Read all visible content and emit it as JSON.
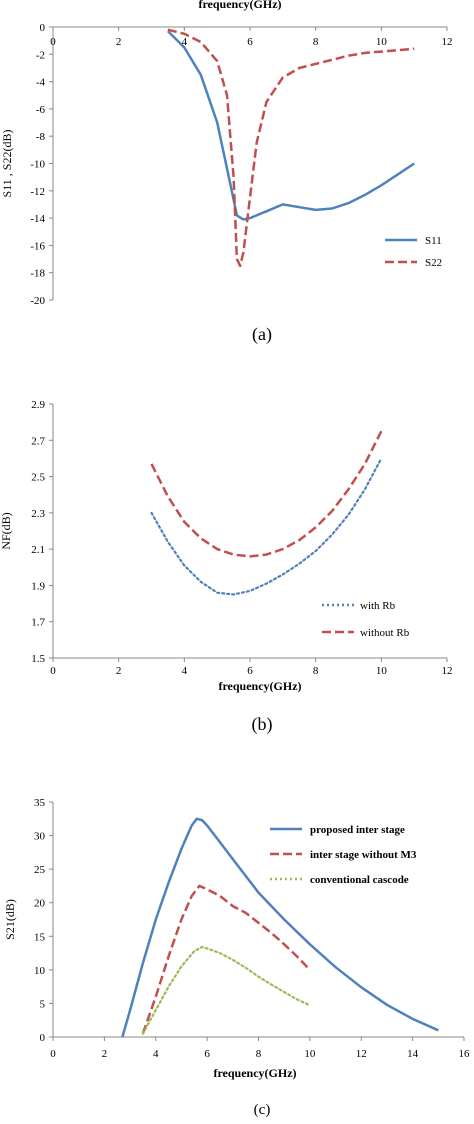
{
  "chart_data": [
    {
      "type": "line",
      "caption": "(a)",
      "xlabel": "frequency(GHz)",
      "ylabel": "S11 , S22(dB)",
      "xlim": [
        0,
        12
      ],
      "ylim": [
        -20,
        0
      ],
      "xticks": [
        0,
        2,
        4,
        6,
        8,
        10,
        12
      ],
      "yticks": [
        0,
        -2,
        -4,
        -6,
        -8,
        -10,
        -12,
        -14,
        -16,
        -18,
        -20
      ],
      "legend_position": "lower-right",
      "series": [
        {
          "name": "S11",
          "color": "#4f81bd",
          "dash": "solid",
          "x": [
            3.5,
            4.0,
            4.5,
            5.0,
            5.4,
            5.6,
            5.8,
            6.0,
            6.5,
            7.0,
            7.5,
            8.0,
            8.5,
            9.0,
            9.5,
            10.0,
            10.5,
            11.0
          ],
          "y": [
            -0.3,
            -1.5,
            -3.5,
            -7.0,
            -11.5,
            -13.8,
            -14.1,
            -14.0,
            -13.5,
            -13.0,
            -13.2,
            -13.4,
            -13.3,
            -12.9,
            -12.3,
            -11.6,
            -10.8,
            -10.0
          ]
        },
        {
          "name": "S22",
          "color": "#c0504d",
          "dash": "dashed",
          "x": [
            3.5,
            4.0,
            4.5,
            5.0,
            5.3,
            5.5,
            5.6,
            5.7,
            5.8,
            6.0,
            6.2,
            6.5,
            7.0,
            7.5,
            8.0,
            8.5,
            9.0,
            9.5,
            10.0,
            10.5,
            11.0
          ],
          "y": [
            -0.2,
            -0.5,
            -1.1,
            -2.5,
            -5.0,
            -11.0,
            -17.0,
            -17.5,
            -16.5,
            -12.5,
            -8.5,
            -5.5,
            -3.7,
            -3.0,
            -2.7,
            -2.4,
            -2.1,
            -1.9,
            -1.8,
            -1.7,
            -1.6
          ]
        }
      ]
    },
    {
      "type": "line",
      "caption": "(b)",
      "xlabel": "frequency(GHz)",
      "ylabel": "NF(dB)",
      "xlim": [
        0,
        12
      ],
      "ylim": [
        1.5,
        2.9
      ],
      "xticks": [
        0,
        2,
        4,
        6,
        8,
        10,
        12
      ],
      "yticks": [
        1.5,
        1.7,
        1.9,
        2.1,
        2.3,
        2.5,
        2.7,
        2.9
      ],
      "legend_position": "lower-right",
      "series": [
        {
          "name": "with Rb",
          "color": "#4f81bd",
          "dash": "dotted",
          "x": [
            3.0,
            3.5,
            4.0,
            4.5,
            5.0,
            5.5,
            6.0,
            6.5,
            7.0,
            7.5,
            8.0,
            8.5,
            9.0,
            9.5,
            10.0
          ],
          "y": [
            2.3,
            2.14,
            2.01,
            1.92,
            1.86,
            1.85,
            1.87,
            1.91,
            1.96,
            2.02,
            2.09,
            2.18,
            2.29,
            2.43,
            2.6
          ]
        },
        {
          "name": "without Rb",
          "color": "#c0504d",
          "dash": "dashed",
          "x": [
            3.0,
            3.5,
            4.0,
            4.5,
            5.0,
            5.5,
            6.0,
            6.5,
            7.0,
            7.5,
            8.0,
            8.5,
            9.0,
            9.5,
            10.0
          ],
          "y": [
            2.57,
            2.39,
            2.25,
            2.16,
            2.1,
            2.07,
            2.06,
            2.07,
            2.1,
            2.15,
            2.22,
            2.31,
            2.43,
            2.57,
            2.75
          ]
        }
      ]
    },
    {
      "type": "line",
      "caption": "(c)",
      "xlabel": "frequency(GHz)",
      "ylabel": "S21(dB)",
      "xlim": [
        0,
        16
      ],
      "ylim": [
        0,
        35
      ],
      "xticks": [
        0,
        2,
        4,
        6,
        8,
        10,
        12,
        14,
        16
      ],
      "yticks": [
        0,
        5,
        10,
        15,
        20,
        25,
        30,
        35
      ],
      "legend_position": "top-right",
      "series": [
        {
          "name": "proposed inter stage",
          "color": "#4f81bd",
          "dash": "solid",
          "x": [
            2.7,
            3.0,
            3.5,
            4.0,
            4.5,
            5.0,
            5.4,
            5.6,
            5.8,
            6.0,
            6.5,
            7.0,
            7.5,
            8.0,
            9.0,
            10.0,
            11.0,
            12.0,
            13.0,
            14.0,
            15.0
          ],
          "y": [
            0.0,
            4.0,
            11.0,
            17.5,
            23.0,
            28.0,
            31.5,
            32.5,
            32.3,
            31.5,
            29.0,
            26.5,
            24.0,
            21.5,
            17.5,
            13.8,
            10.4,
            7.4,
            4.8,
            2.7,
            1.0
          ]
        },
        {
          "name": "inter stage without M3",
          "color": "#c0504d",
          "dash": "dashed",
          "x": [
            3.5,
            4.0,
            4.5,
            5.0,
            5.4,
            5.7,
            6.0,
            6.5,
            7.0,
            7.5,
            8.0,
            8.5,
            9.0,
            9.5,
            10.0
          ],
          "y": [
            0.5,
            6.0,
            12.0,
            17.5,
            21.0,
            22.5,
            22.0,
            21.0,
            19.5,
            18.5,
            17.0,
            15.5,
            13.8,
            12.0,
            10.0
          ]
        },
        {
          "name": "conventional cascode",
          "color": "#9bbb59",
          "dash": "dotted",
          "x": [
            3.5,
            4.0,
            4.5,
            5.0,
            5.5,
            5.8,
            6.0,
            6.5,
            7.0,
            7.5,
            8.0,
            8.5,
            9.0,
            9.5,
            10.0
          ],
          "y": [
            0.5,
            4.0,
            7.5,
            10.5,
            12.8,
            13.4,
            13.2,
            12.5,
            11.5,
            10.3,
            9.0,
            7.8,
            6.7,
            5.6,
            4.7
          ]
        }
      ]
    }
  ]
}
